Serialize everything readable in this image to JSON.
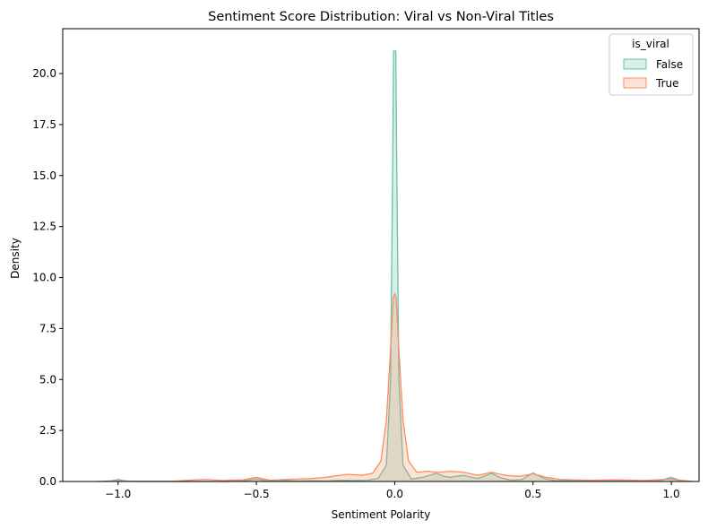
{
  "chart_data": {
    "type": "area",
    "title": "Sentiment Score Distribution: Viral vs Non-Viral Titles",
    "xlabel": "Sentiment Polarity",
    "ylabel": "Density",
    "xlim": [
      -1.2,
      1.1
    ],
    "ylim": [
      0,
      22.2
    ],
    "xticks": [
      -1.0,
      -0.5,
      0.0,
      0.5,
      1.0
    ],
    "xtick_labels": [
      "−1.0",
      "−0.5",
      "0.0",
      "0.5",
      "1.0"
    ],
    "yticks": [
      0,
      2.5,
      5,
      7.5,
      10,
      12.5,
      15,
      17.5,
      20
    ],
    "ytick_labels": [
      "0.0",
      "2.5",
      "5.0",
      "7.5",
      "10.0",
      "12.5",
      "15.0",
      "17.5",
      "20.0"
    ],
    "grid": false,
    "legend": {
      "title": "is_viral",
      "placement": "top-right"
    },
    "series": [
      {
        "name": "False",
        "color": "#66c2a5",
        "fill": "rgba(102,194,165,0.25)",
        "points": [
          [
            -1.06,
            0.0
          ],
          [
            -1.02,
            0.04
          ],
          [
            -1.0,
            0.1
          ],
          [
            -0.98,
            0.04
          ],
          [
            -0.94,
            0.0
          ],
          [
            -0.9,
            0.0
          ],
          [
            -0.8,
            0.0
          ],
          [
            -0.7,
            0.0
          ],
          [
            -0.6,
            0.0
          ],
          [
            -0.55,
            0.02
          ],
          [
            -0.5,
            0.12
          ],
          [
            -0.46,
            0.02
          ],
          [
            -0.42,
            0.02
          ],
          [
            -0.4,
            0.05
          ],
          [
            -0.35,
            0.02
          ],
          [
            -0.3,
            0.04
          ],
          [
            -0.25,
            0.02
          ],
          [
            -0.2,
            0.06
          ],
          [
            -0.15,
            0.05
          ],
          [
            -0.1,
            0.06
          ],
          [
            -0.06,
            0.15
          ],
          [
            -0.03,
            0.8
          ],
          [
            -0.015,
            5.0
          ],
          [
            -0.007,
            16.0
          ],
          [
            -0.004,
            21.1
          ],
          [
            0.004,
            21.1
          ],
          [
            0.007,
            16.0
          ],
          [
            0.015,
            5.0
          ],
          [
            0.03,
            0.8
          ],
          [
            0.06,
            0.12
          ],
          [
            0.1,
            0.2
          ],
          [
            0.15,
            0.4
          ],
          [
            0.18,
            0.25
          ],
          [
            0.2,
            0.2
          ],
          [
            0.22,
            0.25
          ],
          [
            0.25,
            0.3
          ],
          [
            0.28,
            0.2
          ],
          [
            0.3,
            0.15
          ],
          [
            0.35,
            0.4
          ],
          [
            0.38,
            0.2
          ],
          [
            0.42,
            0.06
          ],
          [
            0.46,
            0.1
          ],
          [
            0.5,
            0.42
          ],
          [
            0.54,
            0.15
          ],
          [
            0.58,
            0.04
          ],
          [
            0.62,
            0.05
          ],
          [
            0.7,
            0.02
          ],
          [
            0.8,
            0.05
          ],
          [
            0.9,
            0.02
          ],
          [
            0.95,
            0.02
          ],
          [
            1.0,
            0.2
          ],
          [
            1.03,
            0.06
          ],
          [
            1.06,
            0.0
          ]
        ]
      },
      {
        "name": "True",
        "color": "#fc8d62",
        "fill": "rgba(252,141,98,0.25)",
        "points": [
          [
            -1.08,
            0.0
          ],
          [
            -1.0,
            0.01
          ],
          [
            -0.9,
            0.01
          ],
          [
            -0.8,
            0.01
          ],
          [
            -0.72,
            0.08
          ],
          [
            -0.68,
            0.1
          ],
          [
            -0.62,
            0.05
          ],
          [
            -0.55,
            0.08
          ],
          [
            -0.5,
            0.2
          ],
          [
            -0.45,
            0.06
          ],
          [
            -0.4,
            0.1
          ],
          [
            -0.35,
            0.12
          ],
          [
            -0.3,
            0.15
          ],
          [
            -0.25,
            0.2
          ],
          [
            -0.2,
            0.3
          ],
          [
            -0.17,
            0.35
          ],
          [
            -0.12,
            0.3
          ],
          [
            -0.08,
            0.4
          ],
          [
            -0.05,
            1.0
          ],
          [
            -0.03,
            3.0
          ],
          [
            -0.015,
            6.5
          ],
          [
            -0.005,
            9.0
          ],
          [
            0.0,
            9.2
          ],
          [
            0.005,
            9.0
          ],
          [
            0.015,
            6.5
          ],
          [
            0.03,
            3.0
          ],
          [
            0.05,
            1.0
          ],
          [
            0.08,
            0.45
          ],
          [
            0.12,
            0.5
          ],
          [
            0.16,
            0.45
          ],
          [
            0.2,
            0.5
          ],
          [
            0.25,
            0.45
          ],
          [
            0.3,
            0.3
          ],
          [
            0.35,
            0.45
          ],
          [
            0.4,
            0.3
          ],
          [
            0.45,
            0.25
          ],
          [
            0.5,
            0.38
          ],
          [
            0.55,
            0.2
          ],
          [
            0.6,
            0.1
          ],
          [
            0.7,
            0.06
          ],
          [
            0.8,
            0.08
          ],
          [
            0.9,
            0.05
          ],
          [
            0.97,
            0.1
          ],
          [
            1.0,
            0.12
          ],
          [
            1.04,
            0.05
          ],
          [
            1.08,
            0.0
          ]
        ]
      }
    ]
  }
}
